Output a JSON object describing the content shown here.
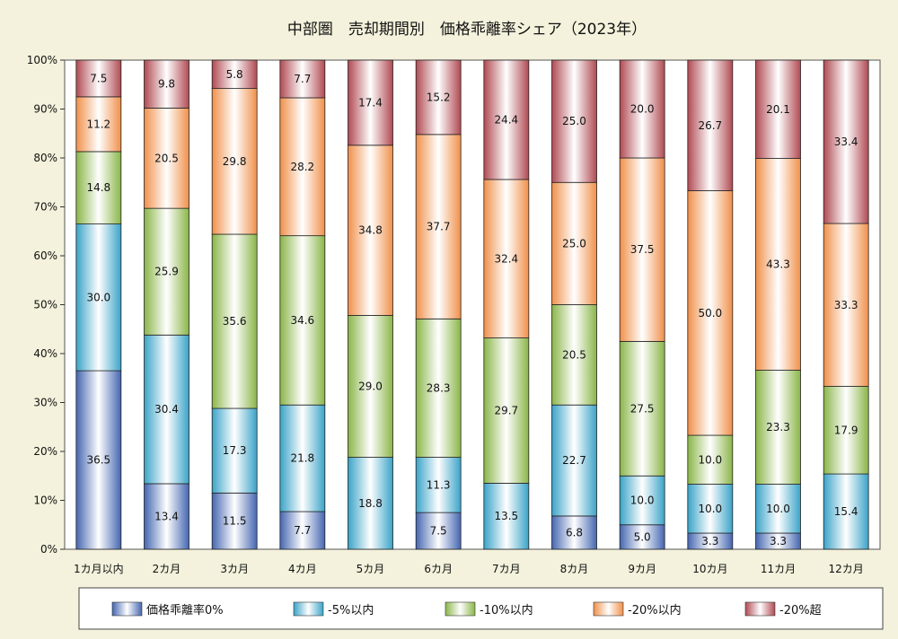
{
  "chart_data": {
    "type": "bar",
    "stacked": true,
    "title": "中部圏　売却期間別　価格乖離率シェア（2023年）",
    "categories": [
      "1カ月以内",
      "2カ月",
      "3カ月",
      "4カ月",
      "5カ月",
      "6カ月",
      "7カ月",
      "8カ月",
      "9カ月",
      "10カ月",
      "11カ月",
      "12カ月"
    ],
    "y_ticks": [
      "0%",
      "10%",
      "20%",
      "30%",
      "40%",
      "50%",
      "60%",
      "70%",
      "80%",
      "90%",
      "100%"
    ],
    "ylim": [
      0,
      100
    ],
    "grid": false,
    "legend_position": "bottom",
    "series": [
      {
        "name": "価格乖離率0%",
        "color": "#4466b0",
        "light": "#ffffff",
        "values": [
          36.5,
          13.4,
          11.5,
          7.7,
          0,
          7.5,
          0,
          6.8,
          5.0,
          3.3,
          3.3,
          0
        ],
        "labels": [
          "36.5",
          "13.4",
          "11.5",
          "7.7",
          "",
          "7.5",
          "",
          "6.8",
          "5.0",
          "3.3",
          "3.3",
          ""
        ]
      },
      {
        "name": "-5%以内",
        "color": "#3aa3c8",
        "light": "#ffffff",
        "values": [
          30.0,
          30.4,
          17.3,
          21.8,
          18.8,
          11.3,
          13.5,
          22.7,
          10.0,
          10.0,
          10.0,
          15.4
        ],
        "labels": [
          "30.0",
          "30.4",
          "17.3",
          "21.8",
          "18.8",
          "11.3",
          "13.5",
          "22.7",
          "10.0",
          "10.0",
          "10.0",
          "15.4"
        ]
      },
      {
        "name": "-10%以内",
        "color": "#8ab548",
        "light": "#ffffff",
        "values": [
          14.8,
          25.9,
          35.6,
          34.6,
          29.0,
          28.3,
          29.7,
          20.5,
          27.5,
          10.0,
          23.3,
          17.9
        ],
        "labels": [
          "14.8",
          "25.9",
          "35.6",
          "34.6",
          "29.0",
          "28.3",
          "29.7",
          "20.5",
          "27.5",
          "10.0",
          "23.3",
          "17.9"
        ]
      },
      {
        "name": "-20%以内",
        "color": "#f0904a",
        "light": "#ffffff",
        "values": [
          11.2,
          20.5,
          29.8,
          28.2,
          34.8,
          37.7,
          32.4,
          25.0,
          37.5,
          50.0,
          43.3,
          33.3
        ],
        "labels": [
          "11.2",
          "20.5",
          "29.8",
          "28.2",
          "34.8",
          "37.7",
          "32.4",
          "25.0",
          "37.5",
          "50.0",
          "43.3",
          "33.3"
        ]
      },
      {
        "name": "-20%超",
        "color": "#b04a52",
        "light": "#ffffff",
        "values": [
          7.5,
          9.8,
          5.8,
          7.7,
          17.4,
          15.2,
          24.4,
          25.0,
          20.0,
          26.7,
          20.1,
          33.4
        ],
        "labels": [
          "7.5",
          "9.8",
          "5.8",
          "7.7",
          "17.4",
          "15.2",
          "24.4",
          "25.0",
          "20.0",
          "26.7",
          "20.1",
          "33.4"
        ]
      }
    ]
  }
}
